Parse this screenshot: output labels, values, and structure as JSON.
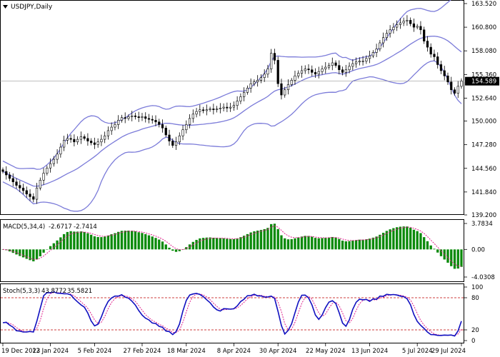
{
  "chart_data": [
    {
      "type": "candlestick",
      "title": "USDJPY,Daily",
      "symbol": "USDJPY",
      "timeframe": "Daily",
      "ylim": [
        139.2,
        163.52
      ],
      "y_ticks": [
        "163.520",
        "160.800",
        "158.080",
        "155.360",
        "152.640",
        "150.000",
        "147.280",
        "144.560",
        "141.840",
        "139.200"
      ],
      "current_price": "154.589",
      "x_ticks": [
        "19 Dec 2023",
        "12 Jan 2024",
        "5 Feb 2024",
        "27 Feb 2024",
        "18 Mar 2024",
        "8 Apr 2024",
        "30 Apr 2024",
        "22 May 2024",
        "13 Jun 2024",
        "5 Jul 2024",
        "29 Jul 2024"
      ],
      "close": [
        144.2,
        143.8,
        143.4,
        143.0,
        142.6,
        142.3,
        142.0,
        141.6,
        141.3,
        141.0,
        142.3,
        143.2,
        144.0,
        144.6,
        145.1,
        145.6,
        146.2,
        147.0,
        147.8,
        148.0,
        147.9,
        147.6,
        147.9,
        148.2,
        148.0,
        147.7,
        147.5,
        147.3,
        147.6,
        147.9,
        148.3,
        148.9,
        149.3,
        149.6,
        150.1,
        150.4,
        150.3,
        150.5,
        150.6,
        150.5,
        150.4,
        150.5,
        150.3,
        150.2,
        150.1,
        149.9,
        149.6,
        149.2,
        148.4,
        147.7,
        147.2,
        147.6,
        148.3,
        149.0,
        149.6,
        150.3,
        150.8,
        151.1,
        151.3,
        151.2,
        151.3,
        151.4,
        151.3,
        151.4,
        151.5,
        151.6,
        151.5,
        151.6,
        151.8,
        152.3,
        152.8,
        153.3,
        153.8,
        154.3,
        154.5,
        154.7,
        155.0,
        155.4,
        156.0,
        157.8,
        157.0,
        154.3,
        153.0,
        153.6,
        154.2,
        154.7,
        155.2,
        155.5,
        155.8,
        156.0,
        155.9,
        155.6,
        155.4,
        155.7,
        156.0,
        156.2,
        156.4,
        156.7,
        156.4,
        155.9,
        155.6,
        155.9,
        156.3,
        156.6,
        156.8,
        156.9,
        156.9,
        157.2,
        157.5,
        157.9,
        158.3,
        159.0,
        159.6,
        160.1,
        160.5,
        160.8,
        161.1,
        161.3,
        161.5,
        161.6,
        161.2,
        160.8,
        160.9,
        160.5,
        159.2,
        158.5,
        157.7,
        157.4,
        156.5,
        155.8,
        155.2,
        154.5,
        153.6,
        153.2,
        154.0,
        154.6
      ]
    },
    {
      "type": "bar",
      "title": "MACD(5,34,4)",
      "indicator": "MACD(5,34,4)",
      "macd_value": "-2.6717",
      "signal_value": "-2.7414",
      "ylim": [
        -4.0308,
        3.7834
      ],
      "y_ticks": [
        "3.7834",
        "0.00",
        "-4.0308"
      ]
    },
    {
      "type": "line",
      "title": "Stoch(5,3,3)",
      "indicator": "Stoch(5,3,3)",
      "k_value": "43.8772",
      "d_value": "35.5821",
      "ylim": [
        0,
        100
      ],
      "levels": [
        20,
        80
      ],
      "y_ticks": [
        "100",
        "80",
        "20",
        "0"
      ]
    }
  ],
  "colors": {
    "bollinger": "#7b7bd9",
    "macd_bar": "#0a8a0a",
    "macd_signal": "#e0208c",
    "stoch_k": "#1010c0",
    "stoch_d": "#e0208c",
    "level_line": "#c00000"
  }
}
